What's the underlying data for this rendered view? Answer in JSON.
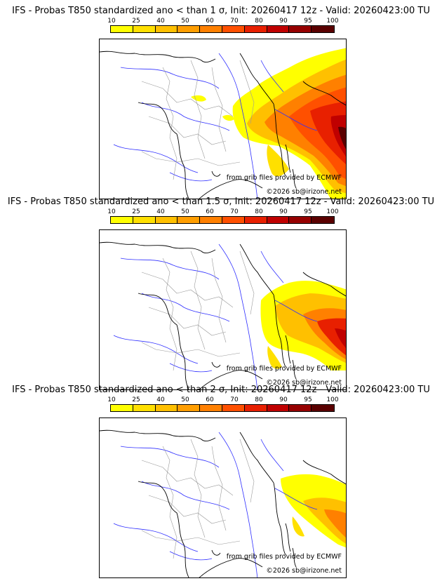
{
  "colorbar": {
    "ticks": [
      "10",
      "25",
      "40",
      "50",
      "60",
      "70",
      "80",
      "90",
      "95",
      "100"
    ],
    "colors": [
      "#ffff00",
      "#ffe000",
      "#ffc000",
      "#ff9e00",
      "#ff8000",
      "#ff5000",
      "#e82000",
      "#c00000",
      "#960000",
      "#5a0000"
    ]
  },
  "credits": {
    "source": "from grib files provided by ECMWF",
    "copyright": "©2026 sb@irizone.net"
  },
  "panels": [
    {
      "title": "IFS - Probas T850  standardized ano < than 1 σ, Init: 20260417 12z - Valid: 20260423:00 TU",
      "threshold": "1 σ"
    },
    {
      "title": "IFS - Probas T850  standardized ano < than 1.5 σ, Init: 20260417 12z - Valid: 20260423:00 TU",
      "threshold": "1.5 σ"
    },
    {
      "title": "IFS - Probas T850  standardized ano < than 2 σ, Init: 20260417 12z - Valid: 20260423:00 TU",
      "threshold": "2 σ"
    }
  ]
}
